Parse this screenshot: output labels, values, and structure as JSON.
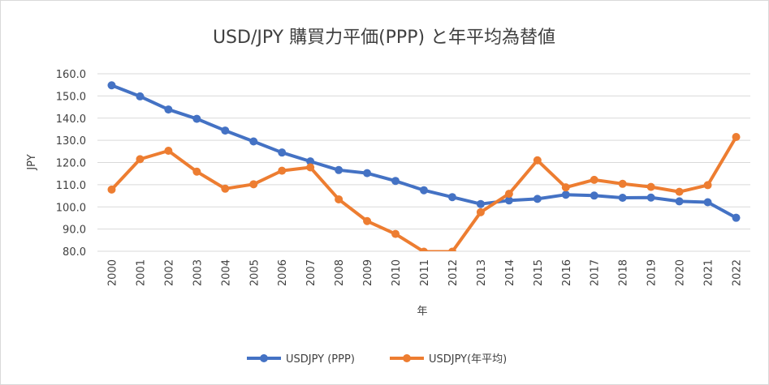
{
  "chart_data": {
    "type": "line",
    "title": "USD/JPY 購買力平価(PPP) と年平均為替値",
    "xlabel": "年",
    "ylabel": "JPY",
    "ylim": [
      80,
      160
    ],
    "y_ticks": [
      "160.0",
      "150.0",
      "140.0",
      "130.0",
      "120.0",
      "110.0",
      "100.0",
      "90.0",
      "80.0"
    ],
    "categories": [
      "2000",
      "2001",
      "2002",
      "2003",
      "2004",
      "2005",
      "2006",
      "2007",
      "2008",
      "2009",
      "2010",
      "2011",
      "2012",
      "2013",
      "2014",
      "2015",
      "2016",
      "2017",
      "2018",
      "2019",
      "2020",
      "2021",
      "2022"
    ],
    "grid": true,
    "legend_position": "bottom",
    "series": [
      {
        "name": "USDJPY (PPP)",
        "color": "#4472c4",
        "values": [
          154.8,
          149.8,
          143.9,
          139.7,
          134.4,
          129.5,
          124.5,
          120.5,
          116.6,
          115.2,
          111.7,
          107.5,
          104.4,
          101.3,
          102.9,
          103.6,
          105.5,
          105.1,
          104.1,
          104.2,
          102.5,
          102.1,
          95.1
        ]
      },
      {
        "name": "USDJPY(年平均)",
        "color": "#ed7d31",
        "values": [
          107.8,
          121.5,
          125.3,
          115.9,
          108.2,
          110.2,
          116.3,
          117.8,
          103.4,
          93.6,
          87.8,
          79.8,
          79.8,
          97.6,
          105.9,
          121.0,
          108.8,
          112.2,
          110.4,
          109.0,
          106.8,
          109.8,
          131.5
        ]
      }
    ]
  }
}
